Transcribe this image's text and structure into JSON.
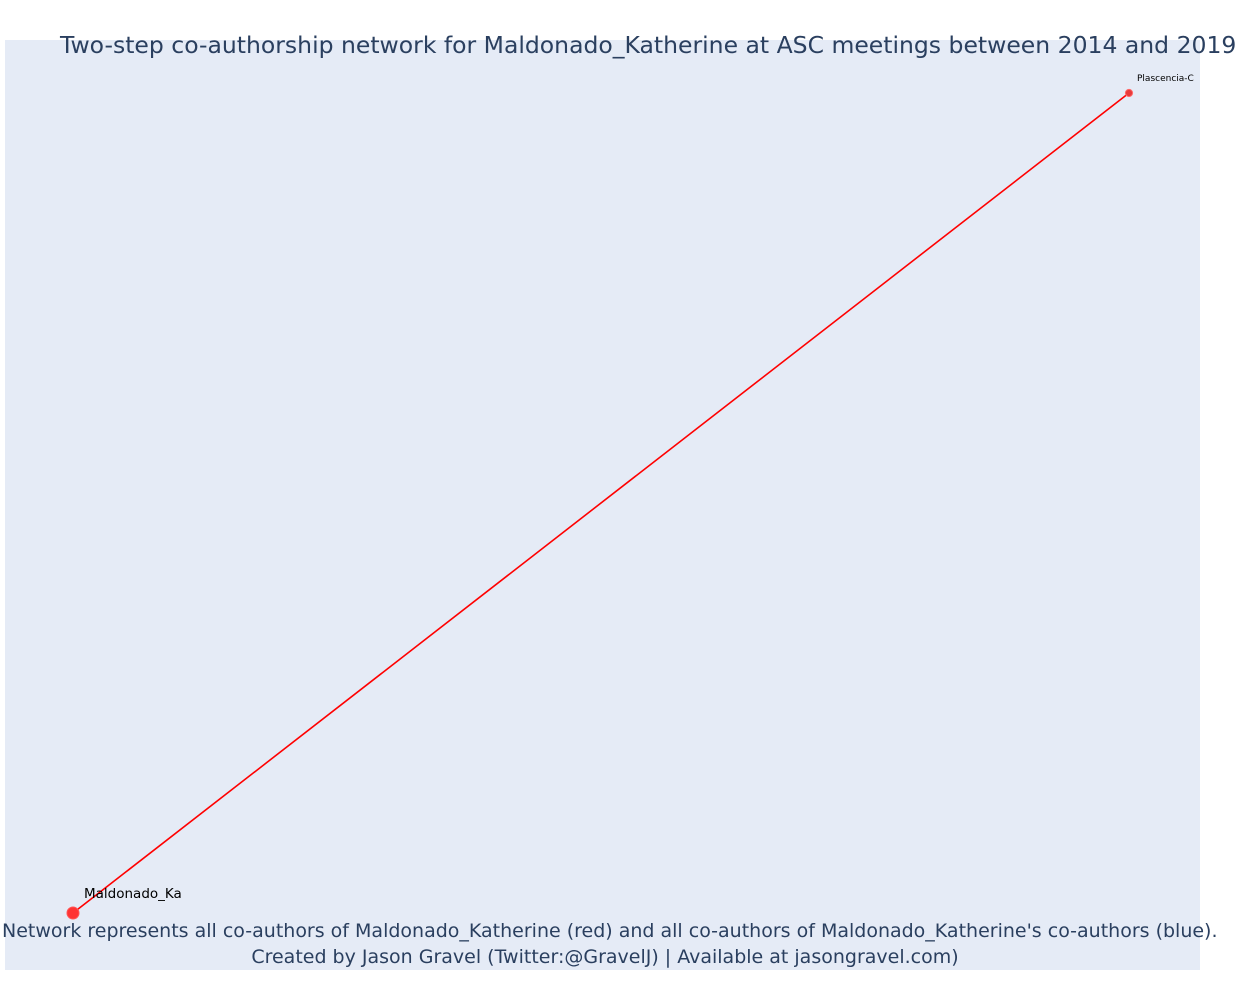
{
  "figure": {
    "title": "Two-step co-authorship network for Maldonado_Katherine at ASC meetings between 2014 and 2019",
    "caption_line1": "Network represents all co-authors of Maldonado_Katherine (red) and all co-authors of Maldonado_Katherine's co-authors (blue).",
    "caption_line2": "Created by Jason Gravel (Twitter:@GravelJ) | Available at jasongravel.com)"
  },
  "colors": {
    "plot_background": "#e5ebf6",
    "edge": "#ff0000",
    "focal_node": "#ff3333",
    "coauthor_node": "#e83a3a",
    "text": "#2a3f5f"
  },
  "network": {
    "nodes": [
      {
        "id": "maldonado",
        "label": "Maldonado_Ka",
        "role": "focal",
        "color": "red"
      },
      {
        "id": "plascencia",
        "label": "Plascencia-C",
        "role": "co-author",
        "color": "red"
      }
    ],
    "edges": [
      {
        "source": "maldonado",
        "target": "plascencia",
        "color": "red"
      }
    ]
  }
}
